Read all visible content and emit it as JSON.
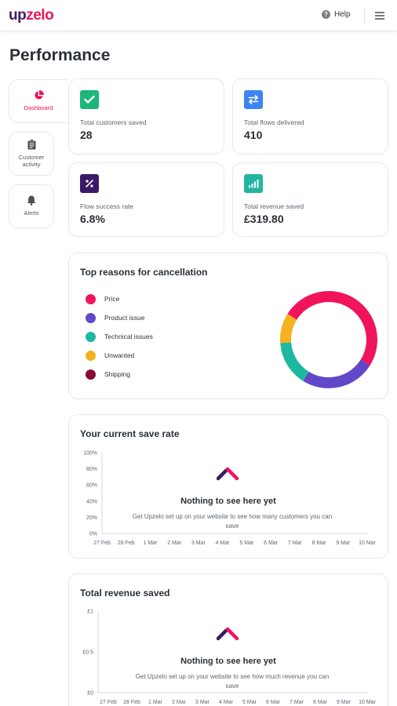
{
  "header": {
    "logo_part1": "up",
    "logo_part2": "zelo",
    "help_label": "Help",
    "help_icon": "question-circle-icon",
    "menu_icon": "hamburger-menu-icon"
  },
  "page": {
    "title": "Performance"
  },
  "sidebar": {
    "items": [
      {
        "label": "Dashboard",
        "icon": "pie-chart-icon",
        "active": true
      },
      {
        "label_line1": "Customer",
        "label_line2": "activity",
        "icon": "clipboard-icon",
        "active": false
      },
      {
        "label": "Alerts",
        "icon": "bell-icon",
        "active": false
      }
    ]
  },
  "stats": [
    {
      "label": "Total customers saved",
      "value": "28",
      "icon": "checkmark-icon",
      "color": "#1cb57a"
    },
    {
      "label": "Total flows delivered",
      "value": "410",
      "icon": "arrows-swap-icon",
      "color": "#3b86f0"
    },
    {
      "label": "Flow success rate",
      "value": "6.8%",
      "icon": "percent-icon",
      "color": "#3b1868"
    },
    {
      "label": "Total revenue saved",
      "value": "£319.80",
      "icon": "bar-chart-icon",
      "color": "#22b6a0"
    }
  ],
  "cancellation": {
    "title": "Top reasons for cancellation",
    "chart_data": {
      "type": "pie",
      "categories": [
        "Price",
        "Product issue",
        "Technical issues",
        "Unwanted",
        "Shipping"
      ],
      "values": [
        50,
        25,
        15,
        10,
        0
      ],
      "colors": [
        "#f0145a",
        "#6247c9",
        "#1cb8a0",
        "#f5b21f",
        "#8a0a3a"
      ]
    }
  },
  "save_rate": {
    "title": "Your current save rate",
    "empty_title": "Nothing to see here yet",
    "empty_text": "Get Upzelo set up on your website to see how many customers you can save",
    "chart_data": {
      "type": "line",
      "x": [
        "27 Feb",
        "28 Feb",
        "1 Mar",
        "2 Mar",
        "3 Mar",
        "4 Mar",
        "5 Mar",
        "6 Mar",
        "7 Mar",
        "8 Mar",
        "9 Mar",
        "10 Mar"
      ],
      "y_ticks": [
        "100%",
        "80%",
        "60%",
        "40%",
        "20%",
        "0%"
      ],
      "series": []
    }
  },
  "revenue": {
    "title": "Total revenue saved",
    "empty_title": "Nothing to see here yet",
    "empty_text": "Get Upzelo set up on your website to see how much revenue you can save",
    "chart_data": {
      "type": "line",
      "x": [
        "27 Feb",
        "28 Feb",
        "1 Mar",
        "2 Mar",
        "3 Mar",
        "4 Mar",
        "5 Mar",
        "6 Mar",
        "7 Mar",
        "8 Mar",
        "9 Mar",
        "10 Mar"
      ],
      "y_ticks": [
        "£1",
        "£0.5",
        "£0"
      ],
      "series": []
    }
  }
}
